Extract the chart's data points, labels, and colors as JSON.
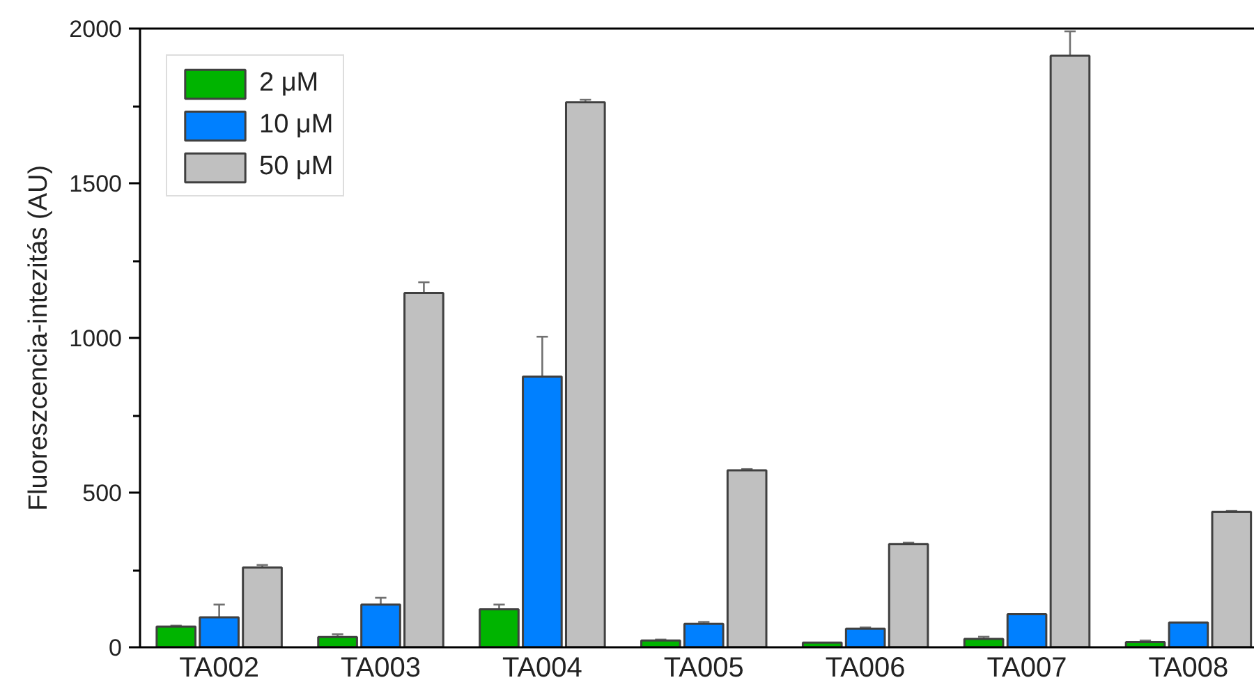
{
  "chart_data": {
    "type": "bar",
    "ylabel": "Fluoreszcencia-intezitás (AU)",
    "categories": [
      "TA002",
      "TA003",
      "TA004",
      "TA005",
      "TA006",
      "TA007",
      "TA008"
    ],
    "series": [
      {
        "name": "2 μM",
        "color": "#00b400",
        "values": [
          67,
          33,
          123,
          22,
          15,
          27,
          17
        ],
        "errors": [
          3,
          9,
          15,
          3,
          null,
          7,
          5
        ]
      },
      {
        "name": "10 μM",
        "color": "#0080ff",
        "values": [
          97,
          138,
          875,
          76,
          60,
          107,
          80
        ],
        "errors": [
          41,
          22,
          129,
          6,
          4,
          null,
          null
        ]
      },
      {
        "name": "50 μM",
        "color": "#c0c0c0",
        "values": [
          258,
          1145,
          1762,
          572,
          334,
          1912,
          438
        ],
        "errors": [
          8,
          35,
          8,
          4,
          4,
          79,
          3
        ]
      }
    ],
    "ylim": [
      0,
      2000
    ],
    "yticks": [
      0,
      {
        "value": 250,
        "label": null
      },
      500,
      {
        "value": 750,
        "label": null
      },
      1000,
      {
        "value": 1250,
        "label": null
      },
      1500,
      {
        "value": 1750,
        "label": null
      },
      2000
    ],
    "legend": "top left"
  }
}
